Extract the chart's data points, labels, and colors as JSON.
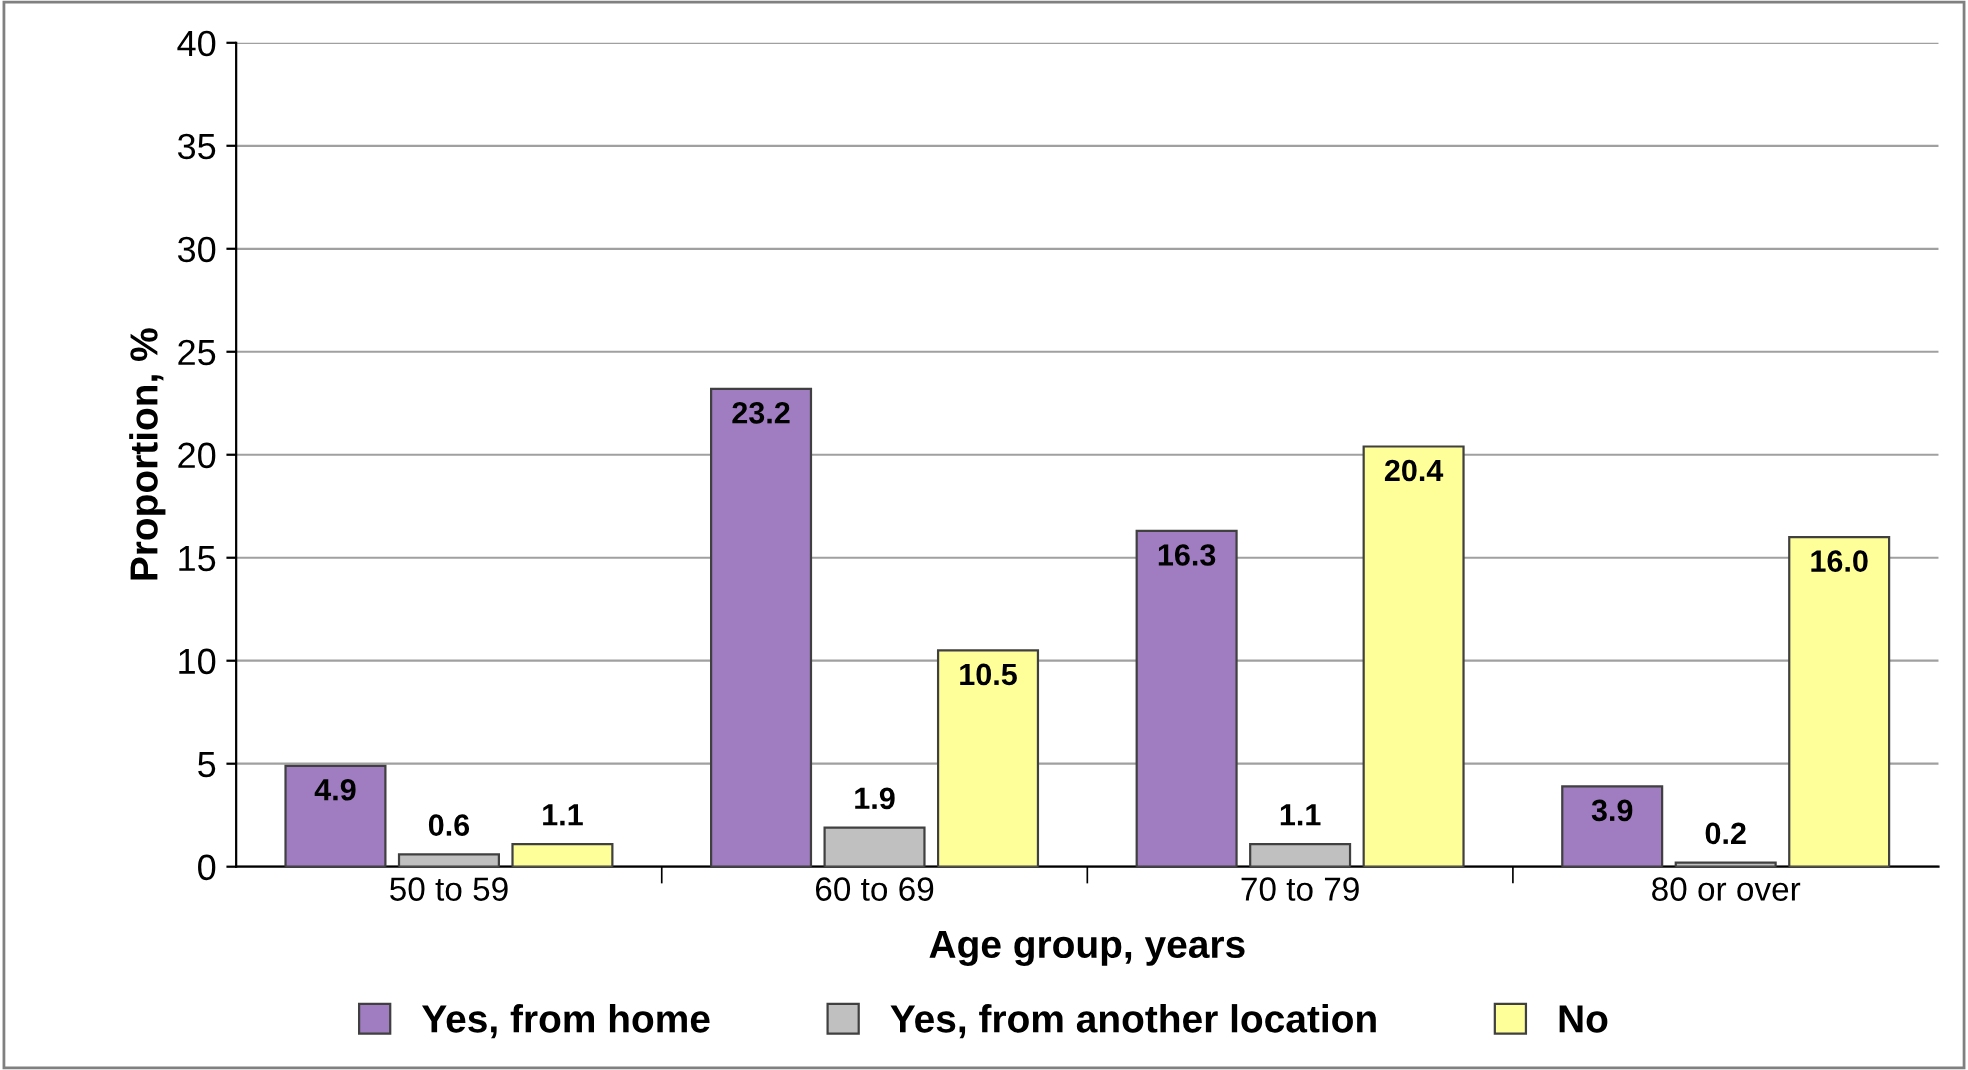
{
  "chart_data": {
    "type": "bar",
    "xlabel": "Age group, years",
    "ylabel": "Proportion, %",
    "categories": [
      "50 to 59",
      "60 to 69",
      "70 to 79",
      "80 or over"
    ],
    "series": [
      {
        "name": "Yes, from home",
        "color": "#a07cc0",
        "values": [
          4.9,
          23.2,
          16.3,
          3.9
        ],
        "value_labels": [
          "4.9",
          "23.2",
          "16.3",
          "3.9"
        ]
      },
      {
        "name": "Yes, from another location",
        "color": "#c0c0c0",
        "values": [
          0.6,
          1.9,
          1.1,
          0.2
        ],
        "value_labels": [
          "0.6",
          "1.9",
          "1.1",
          "0.2"
        ]
      },
      {
        "name": "No",
        "color": "#ffff99",
        "values": [
          1.1,
          10.5,
          20.4,
          16.0
        ],
        "value_labels": [
          "1.1",
          "10.5",
          "20.4",
          "16.0"
        ]
      }
    ],
    "ylim": [
      0,
      40
    ],
    "yticks": [
      0,
      5,
      10,
      15,
      20,
      25,
      30,
      35,
      40
    ],
    "grid": "y",
    "legend": "bottom"
  }
}
